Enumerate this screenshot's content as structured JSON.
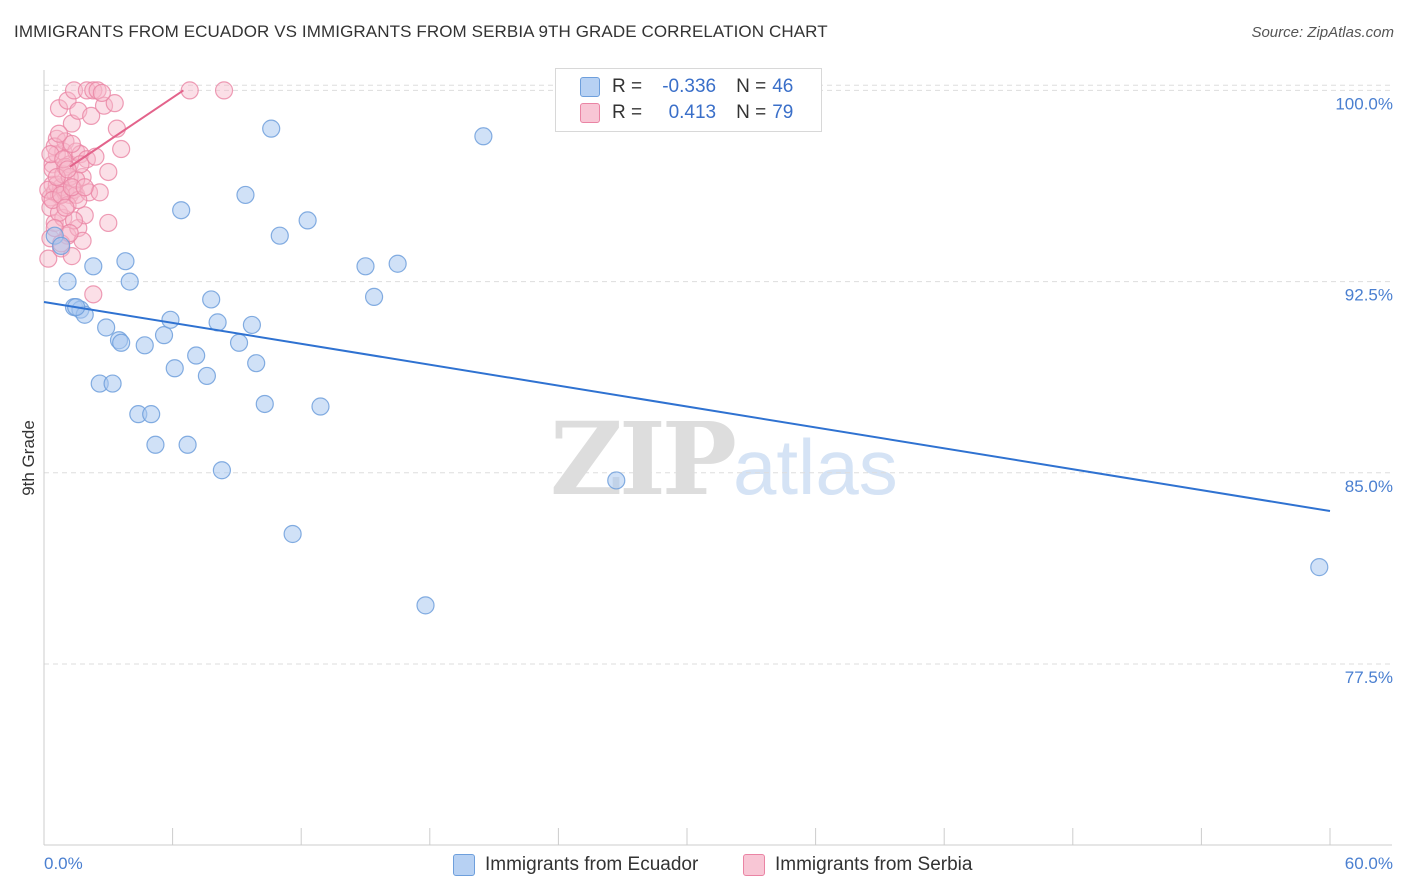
{
  "header": {
    "title": "IMMIGRANTS FROM ECUADOR VS IMMIGRANTS FROM SERBIA 9TH GRADE CORRELATION CHART",
    "source": "Source: ZipAtlas.com"
  },
  "watermark": {
    "zip": "ZIP",
    "atlas": "atlas"
  },
  "legend": {
    "series": [
      {
        "r_label": "R =",
        "r_value": "-0.336",
        "n_label": "N =",
        "n_value": "46"
      },
      {
        "r_label": "R =",
        "r_value": "0.413",
        "n_label": "N =",
        "n_value": "79"
      }
    ]
  },
  "bottom_legend": {
    "ecuador": "Immigrants from Ecuador",
    "serbia": "Immigrants from Serbia"
  },
  "colors": {
    "ecuador_fill": "#a9c8f0",
    "ecuador_stroke": "#6e9fdc",
    "ecuador_line": "#2f72d1",
    "serbia_fill": "#f6b7ca",
    "serbia_stroke": "#ea84a4",
    "serbia_line": "#e3638b",
    "grid": "#dddddd",
    "tick_text": "#4a7fd0"
  },
  "chart_data": {
    "type": "scatter",
    "title": "IMMIGRANTS FROM ECUADOR VS IMMIGRANTS FROM SERBIA 9TH GRADE CORRELATION CHART",
    "xlabel": "",
    "ylabel": "9th Grade",
    "xlim": [
      0,
      60
    ],
    "ylim": [
      70.4,
      100.8
    ],
    "x_tick_labels": [
      "0.0%",
      "60.0%"
    ],
    "y_ticks": [
      77.5,
      85.0,
      92.5,
      100.0
    ],
    "y_tick_labels": [
      "77.5%",
      "85.0%",
      "92.5%",
      "100.0%"
    ],
    "grid": true,
    "series": [
      {
        "name": "Immigrants from Ecuador",
        "r": -0.336,
        "n": 46,
        "trend": {
          "x": [
            0,
            60
          ],
          "y": [
            91.7,
            83.5
          ]
        },
        "points": [
          [
            0.5,
            94.3
          ],
          [
            0.8,
            93.9
          ],
          [
            1.1,
            92.5
          ],
          [
            1.4,
            91.5
          ],
          [
            1.7,
            91.4
          ],
          [
            1.9,
            91.2
          ],
          [
            2.3,
            93.1
          ],
          [
            2.6,
            88.5
          ],
          [
            2.9,
            90.7
          ],
          [
            3.2,
            88.5
          ],
          [
            3.5,
            90.2
          ],
          [
            3.8,
            93.3
          ],
          [
            4.0,
            92.5
          ],
          [
            4.4,
            87.3
          ],
          [
            4.7,
            90.0
          ],
          [
            5.0,
            87.3
          ],
          [
            5.2,
            86.1
          ],
          [
            5.6,
            90.4
          ],
          [
            5.9,
            91.0
          ],
          [
            6.1,
            89.1
          ],
          [
            6.4,
            95.3
          ],
          [
            6.7,
            86.1
          ],
          [
            7.1,
            89.6
          ],
          [
            7.6,
            88.8
          ],
          [
            7.8,
            91.8
          ],
          [
            8.1,
            90.9
          ],
          [
            8.3,
            85.1
          ],
          [
            9.1,
            90.1
          ],
          [
            9.4,
            95.9
          ],
          [
            9.7,
            90.8
          ],
          [
            9.9,
            89.3
          ],
          [
            10.3,
            87.7
          ],
          [
            10.6,
            98.5
          ],
          [
            11.0,
            94.3
          ],
          [
            11.6,
            82.6
          ],
          [
            12.3,
            94.9
          ],
          [
            12.9,
            87.6
          ],
          [
            15.0,
            93.1
          ],
          [
            15.4,
            91.9
          ],
          [
            16.5,
            93.2
          ],
          [
            17.8,
            79.8
          ],
          [
            20.5,
            98.2
          ],
          [
            26.7,
            84.7
          ],
          [
            59.5,
            81.3
          ],
          [
            1.5,
            91.5
          ],
          [
            3.6,
            90.1
          ]
        ]
      },
      {
        "name": "Immigrants from Serbia",
        "r": 0.413,
        "n": 79,
        "trend": {
          "x": [
            1.2,
            6.5
          ],
          "y": [
            97.0,
            100.0
          ]
        },
        "points": [
          [
            0.2,
            93.4
          ],
          [
            0.3,
            94.2
          ],
          [
            0.3,
            95.8
          ],
          [
            0.4,
            96.3
          ],
          [
            0.4,
            97.1
          ],
          [
            0.5,
            94.8
          ],
          [
            0.5,
            96.0
          ],
          [
            0.6,
            97.5
          ],
          [
            0.6,
            98.1
          ],
          [
            0.7,
            95.9
          ],
          [
            0.7,
            99.3
          ],
          [
            0.8,
            96.2
          ],
          [
            0.8,
            93.8
          ],
          [
            0.9,
            97.6
          ],
          [
            0.9,
            95.0
          ],
          [
            1.0,
            96.0
          ],
          [
            1.0,
            98.0
          ],
          [
            1.1,
            94.3
          ],
          [
            1.1,
            99.6
          ],
          [
            1.2,
            97.1
          ],
          [
            1.2,
            95.9
          ],
          [
            1.3,
            98.7
          ],
          [
            1.3,
            93.5
          ],
          [
            1.4,
            96.1
          ],
          [
            1.4,
            100.0
          ],
          [
            1.5,
            97.6
          ],
          [
            1.5,
            95.9
          ],
          [
            1.6,
            99.2
          ],
          [
            1.6,
            94.6
          ],
          [
            1.7,
            97.5
          ],
          [
            1.8,
            96.6
          ],
          [
            1.9,
            95.1
          ],
          [
            2.0,
            100.0
          ],
          [
            2.0,
            97.3
          ],
          [
            2.1,
            96.0
          ],
          [
            2.2,
            99.0
          ],
          [
            2.3,
            100.0
          ],
          [
            2.3,
            92.0
          ],
          [
            2.5,
            100.0
          ],
          [
            2.6,
            96.0
          ],
          [
            2.8,
            99.4
          ],
          [
            3.0,
            94.8
          ],
          [
            3.0,
            96.8
          ],
          [
            3.3,
            99.5
          ],
          [
            3.4,
            98.5
          ],
          [
            3.6,
            97.7
          ],
          [
            6.8,
            100.0
          ],
          [
            8.4,
            100.0
          ],
          [
            0.3,
            95.4
          ],
          [
            0.4,
            96.9
          ],
          [
            0.5,
            97.8
          ],
          [
            0.6,
            96.3
          ],
          [
            0.7,
            95.2
          ],
          [
            0.8,
            94.0
          ],
          [
            0.9,
            96.7
          ],
          [
            1.0,
            97.0
          ],
          [
            1.1,
            95.5
          ],
          [
            1.2,
            96.6
          ],
          [
            1.3,
            97.9
          ],
          [
            1.4,
            94.9
          ],
          [
            1.5,
            96.5
          ],
          [
            1.6,
            95.7
          ],
          [
            1.7,
            97.1
          ],
          [
            1.8,
            94.1
          ],
          [
            0.2,
            96.1
          ],
          [
            0.3,
            97.5
          ],
          [
            0.4,
            95.7
          ],
          [
            0.5,
            94.6
          ],
          [
            0.6,
            96.6
          ],
          [
            0.7,
            98.3
          ],
          [
            0.8,
            95.9
          ],
          [
            0.9,
            97.3
          ],
          [
            1.0,
            95.4
          ],
          [
            1.1,
            96.9
          ],
          [
            1.2,
            94.4
          ],
          [
            1.3,
            96.2
          ],
          [
            2.4,
            97.4
          ],
          [
            2.7,
            99.9
          ],
          [
            1.9,
            96.2
          ]
        ]
      }
    ]
  }
}
